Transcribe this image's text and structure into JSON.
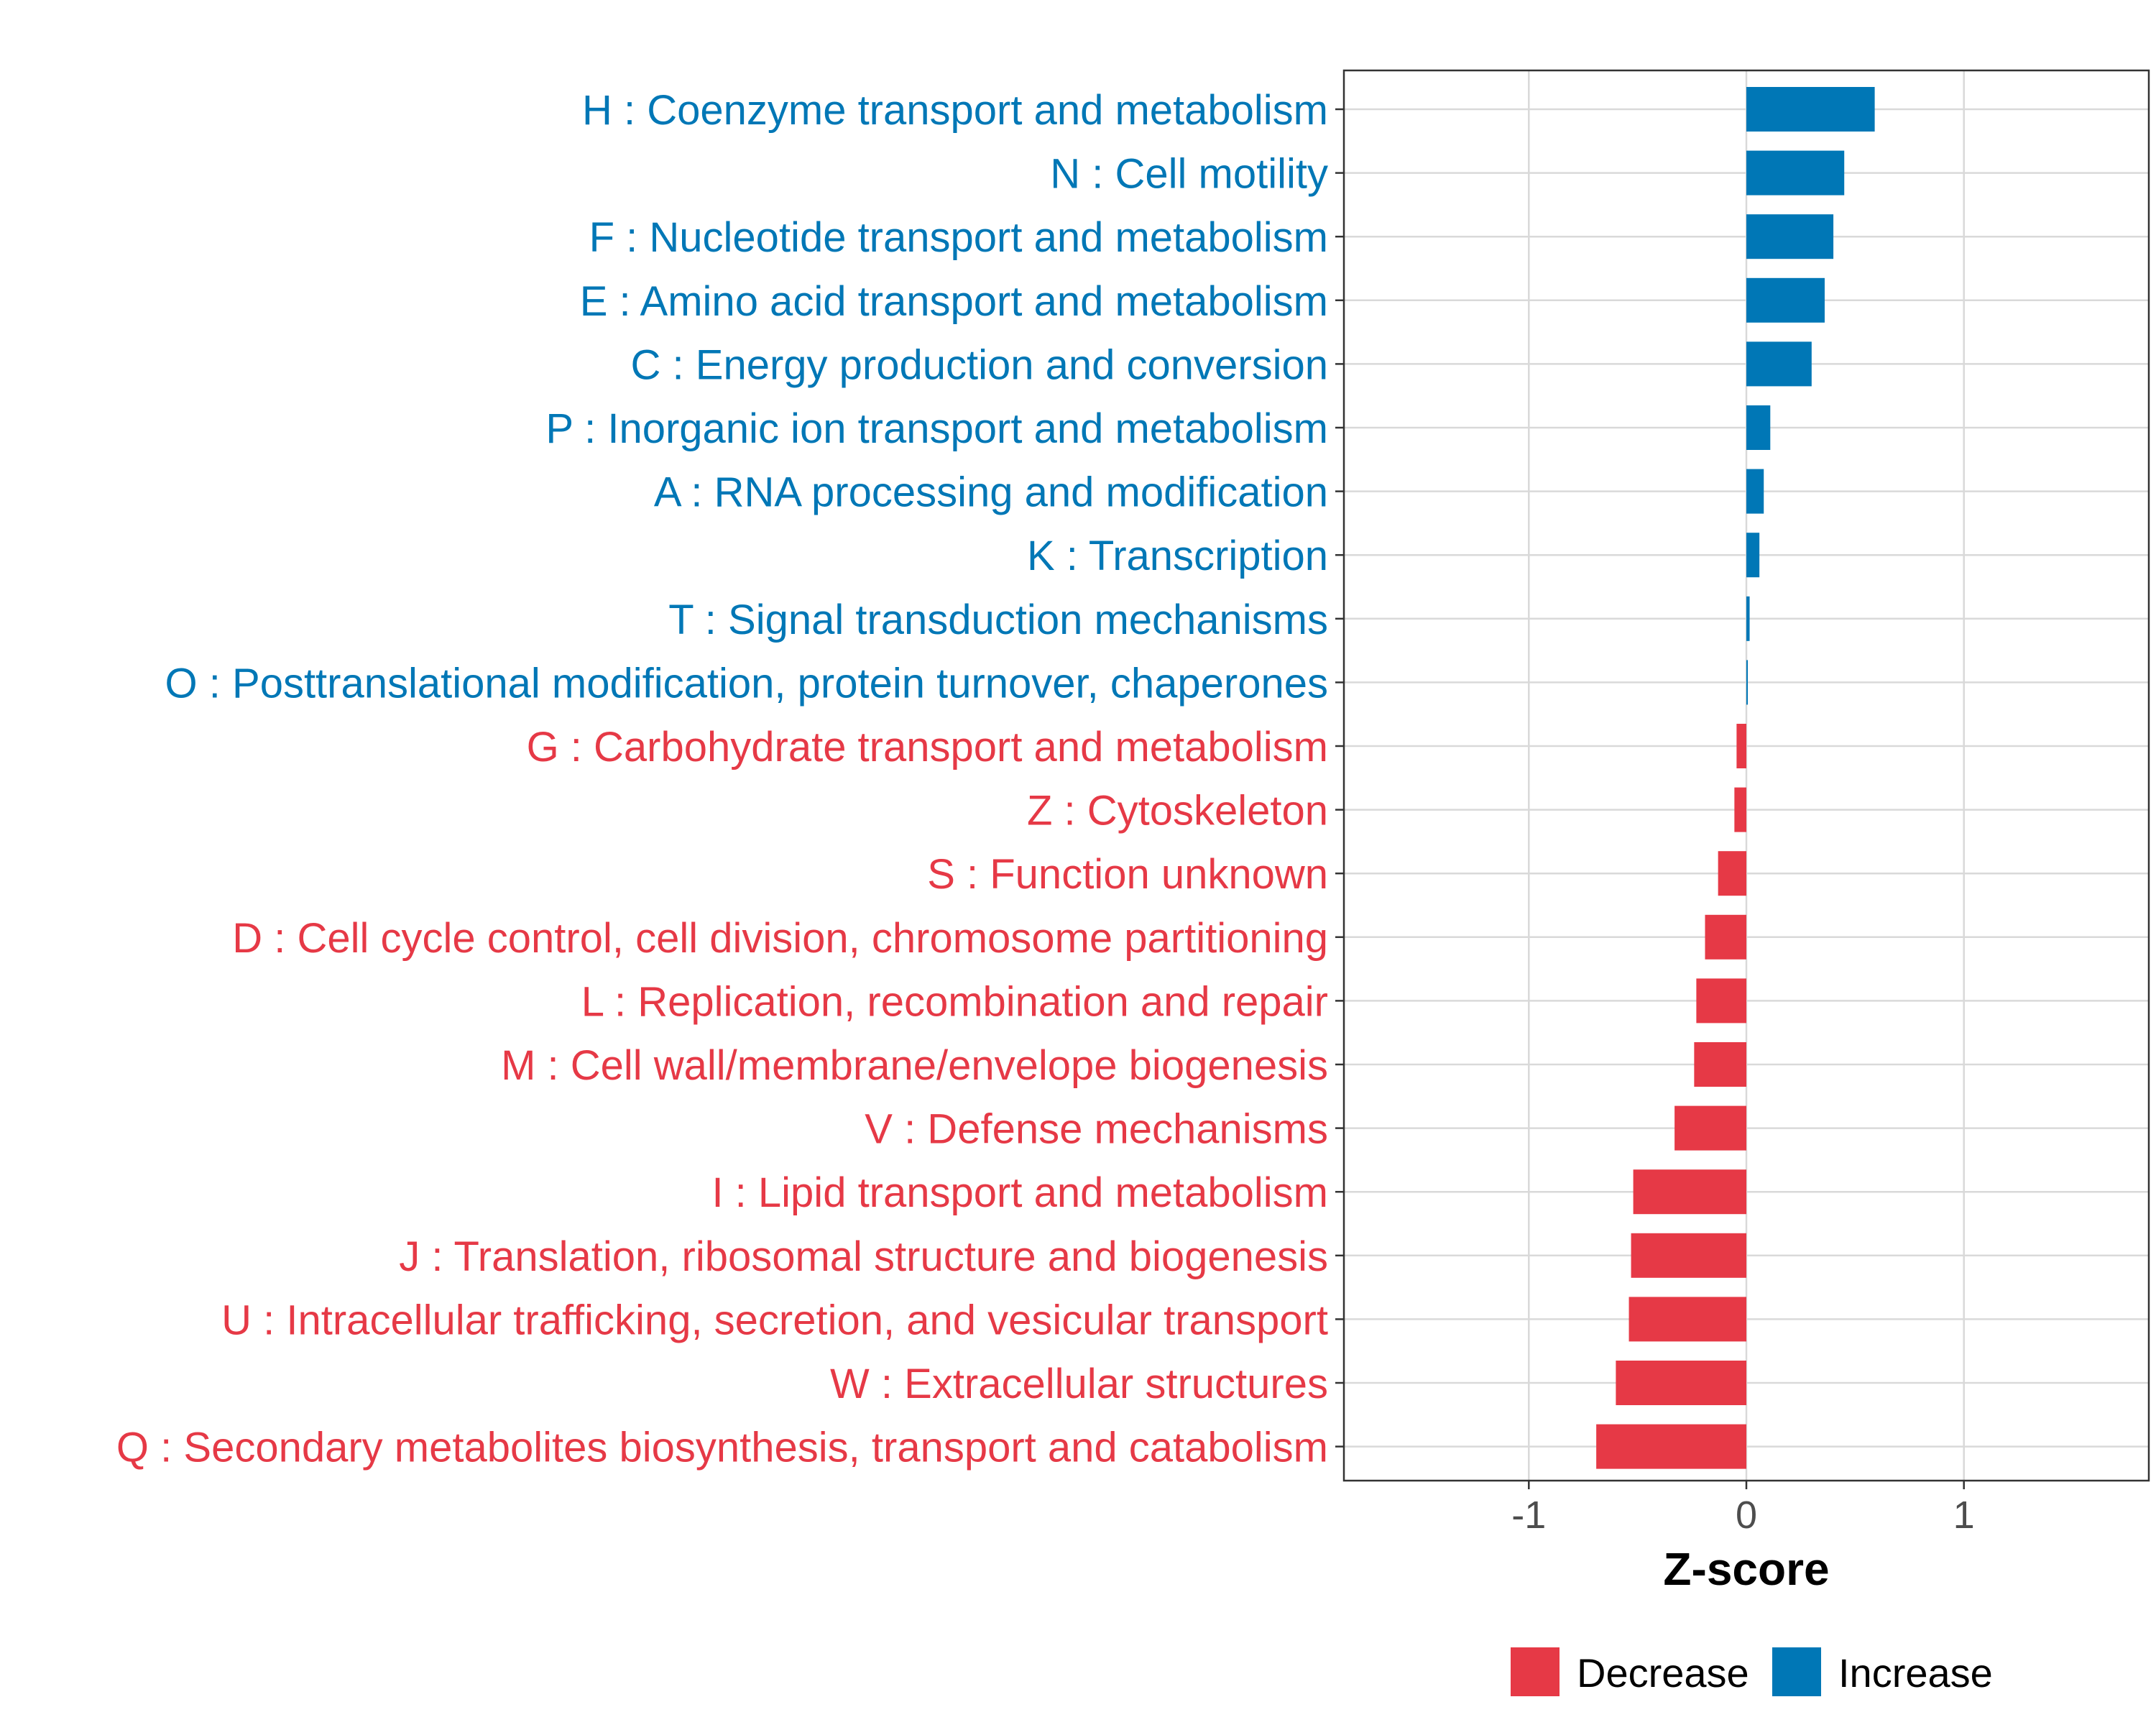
{
  "chart_data": {
    "type": "bar",
    "orientation": "horizontal",
    "xlabel": "Z-score",
    "xlim": [
      -1.85,
      1.85
    ],
    "xticks": [
      -1,
      0,
      1
    ],
    "xtick_labels": [
      "-1",
      "0",
      "1"
    ],
    "grid": true,
    "legend_position": "bottom",
    "categories": [
      {
        "label": "H : Coenzyme transport and metabolism",
        "value": 0.59,
        "group": "Increase"
      },
      {
        "label": "N : Cell motility",
        "value": 0.45,
        "group": "Increase"
      },
      {
        "label": "F : Nucleotide transport and metabolism",
        "value": 0.4,
        "group": "Increase"
      },
      {
        "label": "E : Amino acid transport and metabolism",
        "value": 0.36,
        "group": "Increase"
      },
      {
        "label": "C : Energy production and conversion",
        "value": 0.3,
        "group": "Increase"
      },
      {
        "label": "P : Inorganic ion transport and metabolism",
        "value": 0.11,
        "group": "Increase"
      },
      {
        "label": "A : RNA processing and modification",
        "value": 0.08,
        "group": "Increase"
      },
      {
        "label": "K : Transcription",
        "value": 0.06,
        "group": "Increase"
      },
      {
        "label": "T : Signal transduction mechanisms",
        "value": 0.015,
        "group": "Increase"
      },
      {
        "label": "O : Posttranslational modification, protein turnover, chaperones",
        "value": 0.005,
        "group": "Increase"
      },
      {
        "label": "G : Carbohydrate transport and metabolism",
        "value": -0.045,
        "group": "Decrease"
      },
      {
        "label": "Z : Cytoskeleton",
        "value": -0.055,
        "group": "Decrease"
      },
      {
        "label": "S : Function unknown",
        "value": -0.13,
        "group": "Decrease"
      },
      {
        "label": "D : Cell cycle control, cell division, chromosome partitioning",
        "value": -0.19,
        "group": "Decrease"
      },
      {
        "label": "L : Replication, recombination and repair",
        "value": -0.23,
        "group": "Decrease"
      },
      {
        "label": "M : Cell wall/membrane/envelope biogenesis",
        "value": -0.24,
        "group": "Decrease"
      },
      {
        "label": "V : Defense mechanisms",
        "value": -0.33,
        "group": "Decrease"
      },
      {
        "label": "I : Lipid transport and metabolism",
        "value": -0.52,
        "group": "Decrease"
      },
      {
        "label": "J : Translation, ribosomal structure and biogenesis",
        "value": -0.53,
        "group": "Decrease"
      },
      {
        "label": "U : Intracellular trafficking, secretion, and vesicular transport",
        "value": -0.54,
        "group": "Decrease"
      },
      {
        "label": "W : Extracellular structures",
        "value": -0.6,
        "group": "Decrease"
      },
      {
        "label": "Q : Secondary metabolites biosynthesis, transport and catabolism",
        "value": -0.69,
        "group": "Decrease"
      }
    ],
    "legend": [
      {
        "name": "Decrease",
        "color": "#e63946"
      },
      {
        "name": "Increase",
        "color": "#0077b6"
      }
    ]
  }
}
